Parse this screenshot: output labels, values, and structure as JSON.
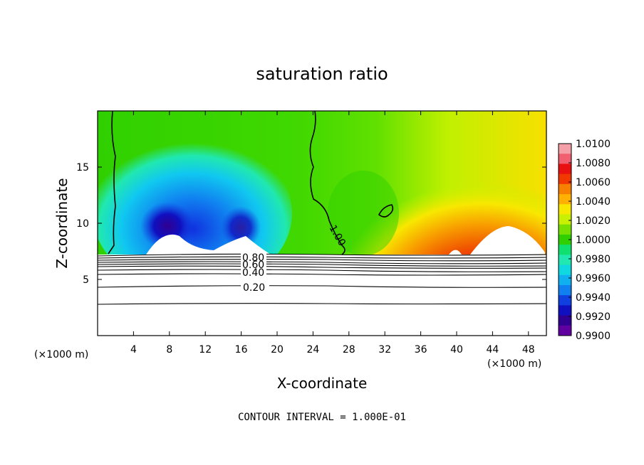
{
  "chart_data": {
    "type": "heatmap",
    "title": "saturation ratio",
    "xlabel": "X-coordinate",
    "ylabel": "Z-coordinate",
    "x_unit_label": "(×1000 m)",
    "x_unit_label_right": "(×1000 m)",
    "xlim": [
      0,
      50
    ],
    "ylim": [
      0,
      20
    ],
    "x_ticks": [
      4,
      8,
      12,
      16,
      20,
      24,
      28,
      32,
      36,
      40,
      44,
      48
    ],
    "y_ticks": [
      5,
      10,
      15
    ],
    "colorbar": {
      "ticks": [
        "1.0100",
        "1.0080",
        "1.0060",
        "1.0040",
        "1.0020",
        "1.0000",
        "0.9980",
        "0.9960",
        "0.9940",
        "0.9920",
        "0.9900"
      ],
      "colors": [
        "#f4a0a8",
        "#f06070",
        "#e81010",
        "#f03800",
        "#f88000",
        "#ffb000",
        "#f8e800",
        "#c8f000",
        "#78e000",
        "#30d000",
        "#10e070",
        "#20e8b0",
        "#10d8e0",
        "#10b0f0",
        "#1080f0",
        "#1040e0",
        "#1010c0",
        "#300090",
        "#6000a0"
      ]
    },
    "contour_labels": [
      "1.00",
      "0.80",
      "0.60",
      "0.40",
      "0.20"
    ],
    "contour_interval": "CONTOUR INTERVAL = 1.000E-01"
  }
}
